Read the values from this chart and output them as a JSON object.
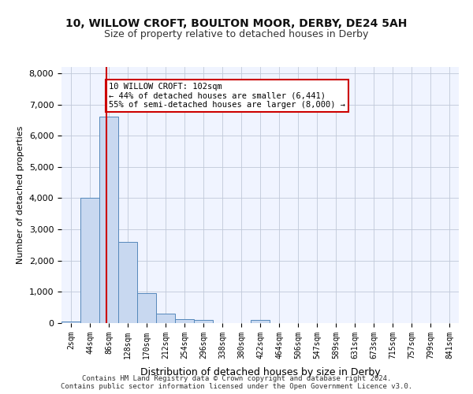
{
  "title_line1": "10, WILLOW CROFT, BOULTON MOOR, DERBY, DE24 5AH",
  "title_line2": "Size of property relative to detached houses in Derby",
  "xlabel": "Distribution of detached houses by size in Derby",
  "ylabel": "Number of detached properties",
  "bin_labels": [
    "2sqm",
    "44sqm",
    "86sqm",
    "128sqm",
    "170sqm",
    "212sqm",
    "254sqm",
    "296sqm",
    "338sqm",
    "380sqm",
    "422sqm",
    "464sqm",
    "506sqm",
    "547sqm",
    "589sqm",
    "631sqm",
    "673sqm",
    "715sqm",
    "757sqm",
    "799sqm",
    "841sqm"
  ],
  "bar_heights": [
    60,
    4000,
    6600,
    2600,
    950,
    310,
    130,
    100,
    0,
    0,
    100,
    0,
    0,
    0,
    0,
    0,
    0,
    0,
    0,
    0,
    0
  ],
  "bar_color": "#c8d8f0",
  "bar_edge_color": "#5588bb",
  "property_line_x": 102,
  "property_line_color": "#cc0000",
  "annotation_text": "10 WILLOW CROFT: 102sqm\n← 44% of detached houses are smaller (6,441)\n55% of semi-detached houses are larger (8,000) →",
  "annotation_box_color": "#ffffff",
  "annotation_box_edge": "#cc0000",
  "ylim": [
    0,
    8200
  ],
  "yticks": [
    0,
    1000,
    2000,
    3000,
    4000,
    5000,
    6000,
    7000,
    8000
  ],
  "footer_text": "Contains HM Land Registry data © Crown copyright and database right 2024.\nContains public sector information licensed under the Open Government Licence v3.0.",
  "bg_color": "#f0f4ff",
  "grid_color": "#c0c8d8",
  "bin_width": 42
}
